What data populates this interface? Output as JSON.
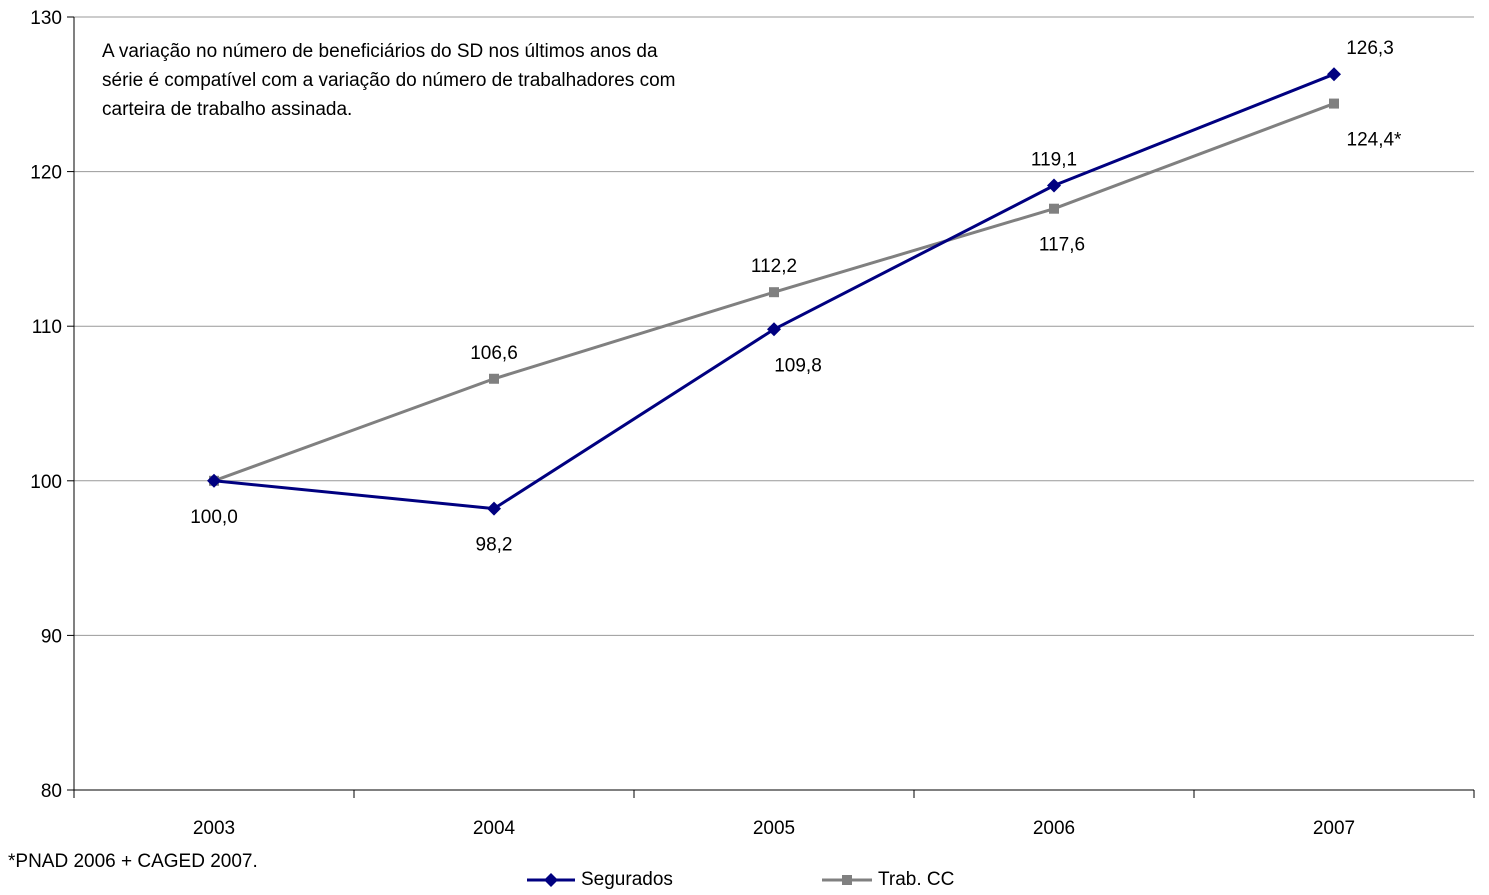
{
  "chart_data": {
    "type": "line",
    "x": [
      "2003",
      "2004",
      "2005",
      "2006",
      "2007"
    ],
    "ylim": [
      80,
      130
    ],
    "yticks": [
      80,
      90,
      100,
      110,
      120,
      130
    ],
    "grid": true,
    "legend_position": "bottom",
    "series": [
      {
        "name": "Segurados",
        "values": [
          100.0,
          98.2,
          109.8,
          119.1,
          126.3
        ],
        "labels": [
          "100,0",
          "98,2",
          "109,8",
          "119,1",
          "126,3"
        ],
        "color": "#000080",
        "marker": "diamond"
      },
      {
        "name": "Trab. CC",
        "values": [
          100.0,
          106.6,
          112.2,
          117.6,
          124.4
        ],
        "labels": [
          "",
          "106,6",
          "112,2",
          "117,6",
          "124,4*"
        ],
        "color": "#808080",
        "marker": "square"
      }
    ],
    "annotation": "A variação no número de beneficiários do SD nos últimos anos da\nsérie é compatível com a variação do número de trabalhadores com\ncarteira de trabalho assinada.",
    "footnote": "*PNAD 2006 + CAGED 2007."
  }
}
